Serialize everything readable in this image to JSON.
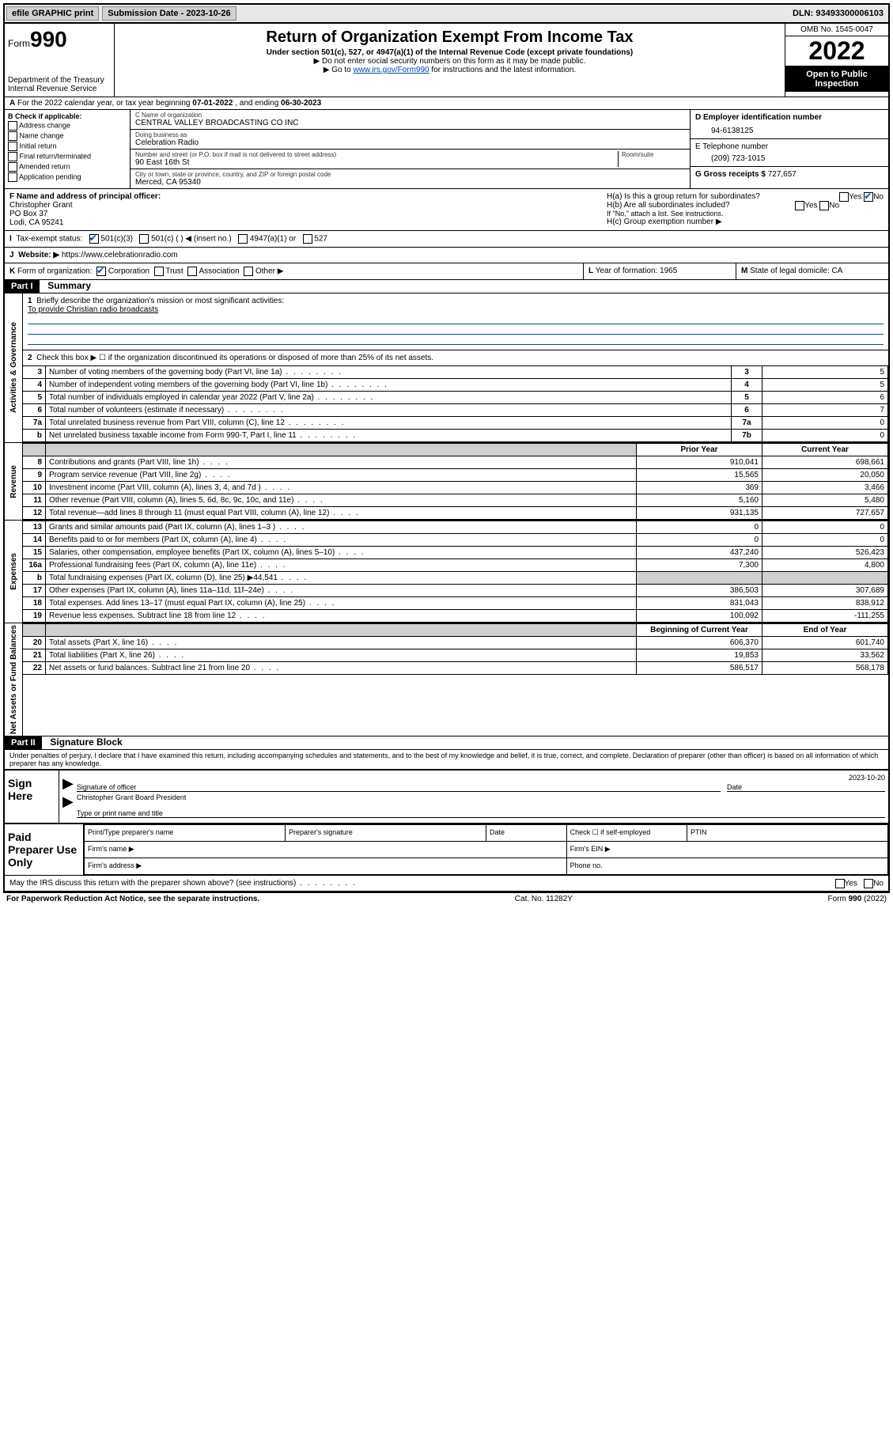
{
  "topbar": {
    "efile": "efile GRAPHIC print",
    "submission_label": "Submission Date - 2023-10-26",
    "dln_label": "DLN: 93493300006103"
  },
  "header": {
    "form_prefix": "Form",
    "form_number": "990",
    "title": "Return of Organization Exempt From Income Tax",
    "subtitle": "Under section 501(c), 527, or 4947(a)(1) of the Internal Revenue Code (except private foundations)",
    "note1": "▶ Do not enter social security numbers on this form as it may be made public.",
    "note2_pre": "▶ Go to ",
    "note2_link": "www.irs.gov/Form990",
    "note2_post": " for instructions and the latest information.",
    "dept": "Department of the Treasury",
    "irs": "Internal Revenue Service",
    "omb": "OMB No. 1545-0047",
    "year": "2022",
    "inspection": "Open to Public Inspection"
  },
  "line_a": {
    "label_a": "A",
    "text": "For the 2022 calendar year, or tax year beginning ",
    "begin": "07-01-2022",
    "mid": " , and ending ",
    "end": "06-30-2023"
  },
  "section_b": {
    "label": "B Check if applicable:",
    "items": [
      "Address change",
      "Name change",
      "Initial return",
      "Final return/terminated",
      "Amended return",
      "Application pending"
    ]
  },
  "section_c": {
    "name_label": "C Name of organization",
    "name": "CENTRAL VALLEY BROADCASTING CO INC",
    "dba_label": "Doing business as",
    "dba": "Celebration Radio",
    "street_label": "Number and street (or P.O. box if mail is not delivered to street address)",
    "street": "90 East 16th St",
    "room_label": "Room/suite",
    "city_label": "City or town, state or province, country, and ZIP or foreign postal code",
    "city": "Merced, CA  95340"
  },
  "section_d": {
    "label": "D Employer identification number",
    "ein": "94-6138125"
  },
  "section_e": {
    "label": "E Telephone number",
    "phone": "(209) 723-1015"
  },
  "section_g": {
    "label": "G Gross receipts $",
    "amount": "727,657"
  },
  "section_f": {
    "label": "F Name and address of principal officer:",
    "name": "Christopher Grant",
    "addr1": "PO Box 37",
    "addr2": "Lodi, CA  95241"
  },
  "section_h": {
    "ha": "H(a)  Is this a group return for subordinates?",
    "hb": "H(b)  Are all subordinates included?",
    "hb_note": "If \"No,\" attach a list. See instructions.",
    "hc": "H(c)  Group exemption number ▶",
    "yes": "Yes",
    "no": "No"
  },
  "section_i": {
    "label": "I",
    "text": "Tax-exempt status:",
    "opt1": "501(c)(3)",
    "opt2": "501(c) (   ) ◀ (insert no.)",
    "opt3": "4947(a)(1) or",
    "opt4": "527"
  },
  "section_j": {
    "label": "J",
    "text": "Website: ▶",
    "url": "https://www.celebrationradio.com"
  },
  "section_k": {
    "label": "K",
    "text": "Form of organization:",
    "opts": [
      "Corporation",
      "Trust",
      "Association",
      "Other ▶"
    ]
  },
  "section_l": {
    "label": "L",
    "text": "Year of formation: ",
    "val": "1965"
  },
  "section_m": {
    "label": "M",
    "text": "State of legal domicile: ",
    "val": "CA"
  },
  "part1": {
    "header": "Part I",
    "title": "Summary",
    "q1": "Briefly describe the organization's mission or most significant activities:",
    "q1_ans": "To provide Christian radio broadcasts",
    "q2": "Check this box ▶ ☐  if the organization discontinued its operations or disposed of more than 25% of its net assets.",
    "tabs": {
      "gov": "Activities & Governance",
      "rev": "Revenue",
      "exp": "Expenses",
      "net": "Net Assets or Fund Balances"
    },
    "rows_single": [
      {
        "n": "3",
        "d": "Number of voting members of the governing body (Part VI, line 1a)",
        "box": "3",
        "v": "5"
      },
      {
        "n": "4",
        "d": "Number of independent voting members of the governing body (Part VI, line 1b)",
        "box": "4",
        "v": "5"
      },
      {
        "n": "5",
        "d": "Total number of individuals employed in calendar year 2022 (Part V, line 2a)",
        "box": "5",
        "v": "6"
      },
      {
        "n": "6",
        "d": "Total number of volunteers (estimate if necessary)",
        "box": "6",
        "v": "7"
      },
      {
        "n": "7a",
        "d": "Total unrelated business revenue from Part VIII, column (C), line 12",
        "box": "7a",
        "v": "0"
      },
      {
        "n": "b",
        "d": "Net unrelated business taxable income from Form 990-T, Part I, line 11",
        "box": "7b",
        "v": "0"
      }
    ],
    "col_headers": {
      "prior": "Prior Year",
      "current": "Current Year"
    },
    "rows_rev": [
      {
        "n": "8",
        "d": "Contributions and grants (Part VIII, line 1h)",
        "p": "910,041",
        "c": "698,661"
      },
      {
        "n": "9",
        "d": "Program service revenue (Part VIII, line 2g)",
        "p": "15,565",
        "c": "20,050"
      },
      {
        "n": "10",
        "d": "Investment income (Part VIII, column (A), lines 3, 4, and 7d )",
        "p": "369",
        "c": "3,466"
      },
      {
        "n": "11",
        "d": "Other revenue (Part VIII, column (A), lines 5, 6d, 8c, 9c, 10c, and 11e)",
        "p": "5,160",
        "c": "5,480"
      },
      {
        "n": "12",
        "d": "Total revenue—add lines 8 through 11 (must equal Part VIII, column (A), line 12)",
        "p": "931,135",
        "c": "727,657"
      }
    ],
    "rows_exp": [
      {
        "n": "13",
        "d": "Grants and similar amounts paid (Part IX, column (A), lines 1–3 )",
        "p": "0",
        "c": "0"
      },
      {
        "n": "14",
        "d": "Benefits paid to or for members (Part IX, column (A), line 4)",
        "p": "0",
        "c": "0"
      },
      {
        "n": "15",
        "d": "Salaries, other compensation, employee benefits (Part IX, column (A), lines 5–10)",
        "p": "437,240",
        "c": "526,423"
      },
      {
        "n": "16a",
        "d": "Professional fundraising fees (Part IX, column (A), line 11e)",
        "p": "7,300",
        "c": "4,800"
      },
      {
        "n": "b",
        "d": "Total fundraising expenses (Part IX, column (D), line 25) ▶44,541",
        "p": "",
        "c": "",
        "shade": true
      },
      {
        "n": "17",
        "d": "Other expenses (Part IX, column (A), lines 11a–11d, 11f–24e)",
        "p": "386,503",
        "c": "307,689"
      },
      {
        "n": "18",
        "d": "Total expenses. Add lines 13–17 (must equal Part IX, column (A), line 25)",
        "p": "831,043",
        "c": "838,912"
      },
      {
        "n": "19",
        "d": "Revenue less expenses. Subtract line 18 from line 12",
        "p": "100,092",
        "c": "-111,255"
      }
    ],
    "col_headers2": {
      "begin": "Beginning of Current Year",
      "end": "End of Year"
    },
    "rows_net": [
      {
        "n": "20",
        "d": "Total assets (Part X, line 16)",
        "p": "606,370",
        "c": "601,740"
      },
      {
        "n": "21",
        "d": "Total liabilities (Part X, line 26)",
        "p": "19,853",
        "c": "33,562"
      },
      {
        "n": "22",
        "d": "Net assets or fund balances. Subtract line 21 from line 20",
        "p": "586,517",
        "c": "568,178"
      }
    ]
  },
  "part2": {
    "header": "Part II",
    "title": "Signature Block",
    "declaration": "Under penalties of perjury, I declare that I have examined this return, including accompanying schedules and statements, and to the best of my knowledge and belief, it is true, correct, and complete. Declaration of preparer (other than officer) is based on all information of which preparer has any knowledge.",
    "sign_here": "Sign Here",
    "sig_officer": "Signature of officer",
    "sig_date": "Date",
    "sig_date_val": "2023-10-20",
    "officer_name": "Christopher Grant  Board President",
    "name_title": "Type or print name and title",
    "paid": "Paid Preparer Use Only",
    "prep_name": "Print/Type preparer's name",
    "prep_sig": "Preparer's signature",
    "prep_date": "Date",
    "prep_check": "Check ☐ if self-employed",
    "ptin": "PTIN",
    "firm_name": "Firm's name    ▶",
    "firm_ein": "Firm's EIN ▶",
    "firm_addr": "Firm's address ▶",
    "phone": "Phone no.",
    "discuss": "May the IRS discuss this return with the preparer shown above? (see instructions)"
  },
  "footer": {
    "pra": "For Paperwork Reduction Act Notice, see the separate instructions.",
    "cat": "Cat. No. 11282Y",
    "form": "Form 990 (2022)"
  }
}
